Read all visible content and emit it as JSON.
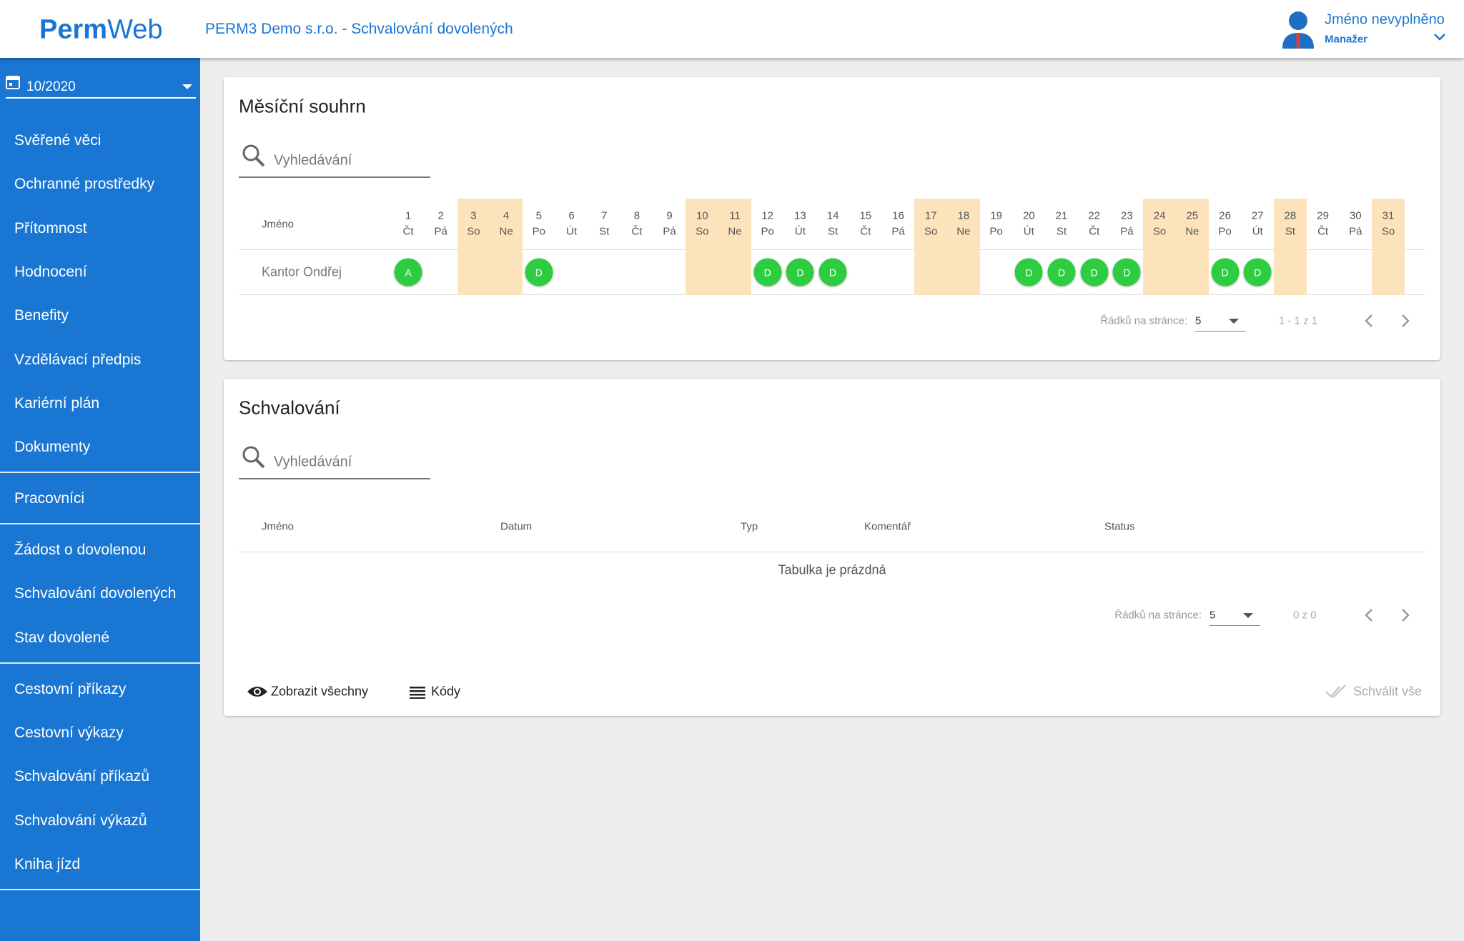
{
  "header": {
    "logo_bold": "Perm",
    "logo_light": "Web",
    "title": "PERM3 Demo s.r.o. - Schvalování dovolených",
    "user_name": "Jméno nevyplněno",
    "user_role": "Manažer"
  },
  "sidebar": {
    "period": "10/2020",
    "groups": [
      [
        {
          "label": "Svěřené věci"
        },
        {
          "label": "Ochranné prostředky"
        },
        {
          "label": "Přítomnost"
        },
        {
          "label": "Hodnocení"
        },
        {
          "label": "Benefity"
        },
        {
          "label": "Vzdělávací předpis"
        },
        {
          "label": "Kariérní plán"
        },
        {
          "label": "Dokumenty"
        }
      ],
      [
        {
          "label": "Pracovníci"
        }
      ],
      [
        {
          "label": "Žádost o dovolenou"
        },
        {
          "label": "Schvalování dovolených",
          "active": true
        },
        {
          "label": "Stav dovolené"
        }
      ],
      [
        {
          "label": "Cestovní příkazy"
        },
        {
          "label": "Cestovní výkazy"
        },
        {
          "label": "Schvalování příkazů"
        },
        {
          "label": "Schvalování výkazů"
        },
        {
          "label": "Kniha jízd"
        }
      ]
    ]
  },
  "summary": {
    "title": "Měsíční souhrn",
    "search_placeholder": "Vyhledávání",
    "name_header": "Jméno",
    "days": [
      {
        "day": 1,
        "weekday": "Čt"
      },
      {
        "day": 2,
        "weekday": "Pá"
      },
      {
        "day": 3,
        "weekday": "So",
        "free": true
      },
      {
        "day": 4,
        "weekday": "Ne",
        "free": true
      },
      {
        "day": 5,
        "weekday": "Po"
      },
      {
        "day": 6,
        "weekday": "Út"
      },
      {
        "day": 7,
        "weekday": "St"
      },
      {
        "day": 8,
        "weekday": "Čt"
      },
      {
        "day": 9,
        "weekday": "Pá"
      },
      {
        "day": 10,
        "weekday": "So",
        "free": true
      },
      {
        "day": 11,
        "weekday": "Ne",
        "free": true
      },
      {
        "day": 12,
        "weekday": "Po"
      },
      {
        "day": 13,
        "weekday": "Út"
      },
      {
        "day": 14,
        "weekday": "St"
      },
      {
        "day": 15,
        "weekday": "Čt"
      },
      {
        "day": 16,
        "weekday": "Pá"
      },
      {
        "day": 17,
        "weekday": "So",
        "free": true
      },
      {
        "day": 18,
        "weekday": "Ne",
        "free": true
      },
      {
        "day": 19,
        "weekday": "Po"
      },
      {
        "day": 20,
        "weekday": "Út"
      },
      {
        "day": 21,
        "weekday": "St"
      },
      {
        "day": 22,
        "weekday": "Čt"
      },
      {
        "day": 23,
        "weekday": "Pá"
      },
      {
        "day": 24,
        "weekday": "So",
        "free": true
      },
      {
        "day": 25,
        "weekday": "Ne",
        "free": true
      },
      {
        "day": 26,
        "weekday": "Po"
      },
      {
        "day": 27,
        "weekday": "Út"
      },
      {
        "day": 28,
        "weekday": "St",
        "free": true
      },
      {
        "day": 29,
        "weekday": "Čt"
      },
      {
        "day": 30,
        "weekday": "Pá"
      },
      {
        "day": 31,
        "weekday": "So",
        "free": true
      }
    ],
    "rows": [
      {
        "name": "Kantor Ondřej",
        "entries": [
          {
            "day": 1,
            "code": "A"
          },
          {
            "day": 5,
            "code": "D"
          },
          {
            "day": 12,
            "code": "D"
          },
          {
            "day": 13,
            "code": "D"
          },
          {
            "day": 14,
            "code": "D"
          },
          {
            "day": 20,
            "code": "D"
          },
          {
            "day": 21,
            "code": "D"
          },
          {
            "day": 22,
            "code": "D"
          },
          {
            "day": 23,
            "code": "D"
          },
          {
            "day": 26,
            "code": "D"
          },
          {
            "day": 27,
            "code": "D"
          }
        ]
      }
    ],
    "rows_label": "Řádků na stránce:",
    "rows_per_page": 5,
    "range": "1 - 1 z 1"
  },
  "approval": {
    "title": "Schvalování",
    "search_placeholder": "Vyhledávání",
    "columns": [
      "Jméno",
      "Datum",
      "Typ",
      "Komentář",
      "Status"
    ],
    "empty": "Tabulka je prázdná",
    "rows_label": "Řádků na stránce:",
    "rows_per_page": 5,
    "range": "0 z 0",
    "show_all": "Zobrazit všechny",
    "codes": "Kódy",
    "approve_all": "Schválit vše"
  }
}
